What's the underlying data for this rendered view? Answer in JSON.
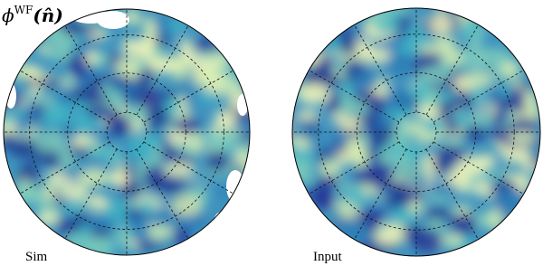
{
  "title": {
    "symbol": "ϕ",
    "superscript": "WF",
    "argument": "(n̂)"
  },
  "panels": [
    {
      "label": "Sim"
    },
    {
      "label": "Input"
    }
  ]
}
